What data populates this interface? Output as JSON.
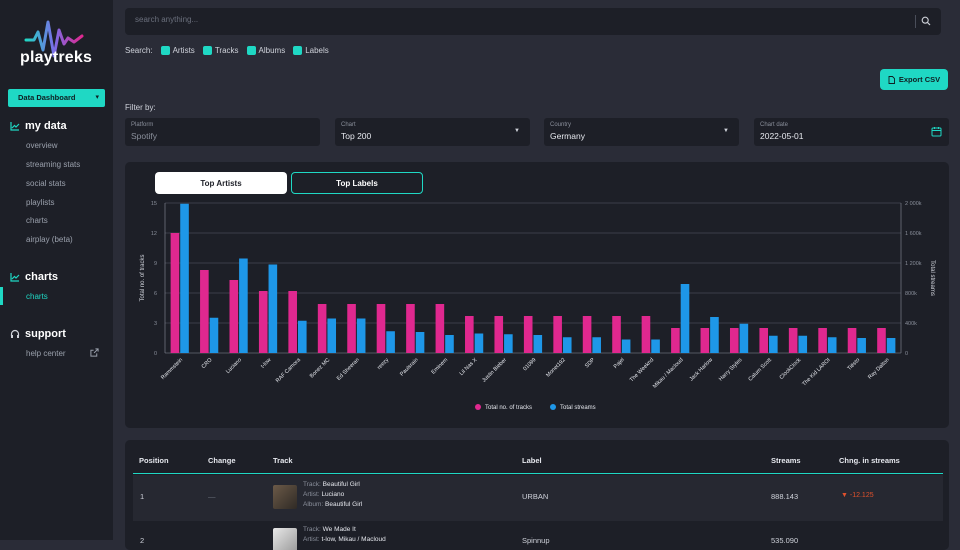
{
  "brand": {
    "name": "playtreks"
  },
  "sidebar": {
    "dashboard_select": "Data Dashboard",
    "sections": [
      {
        "title": "my data",
        "items": [
          "overview",
          "streaming stats",
          "social stats",
          "playlists",
          "charts",
          "airplay (beta)"
        ]
      },
      {
        "title": "charts",
        "items": [
          "charts"
        ]
      },
      {
        "title": "support",
        "items": [
          "help center"
        ]
      }
    ]
  },
  "search": {
    "placeholder": "search anything...",
    "label": "Search:",
    "options": [
      "Artists",
      "Tracks",
      "Albums",
      "Labels"
    ]
  },
  "toolbar": {
    "export_label": "Export CSV"
  },
  "filters": {
    "label": "Filter by:",
    "platform": {
      "label": "Platform",
      "value": "Spotify"
    },
    "chart": {
      "label": "Chart",
      "value": "Top 200"
    },
    "country": {
      "label": "Country",
      "value": "Germany"
    },
    "date": {
      "label": "Chart date",
      "value": "2022-05-01"
    }
  },
  "tabs": {
    "active": "Top Artists",
    "inactive": "Top Labels"
  },
  "chart_data": {
    "type": "bar",
    "categories": [
      "Rammstein",
      "CRO",
      "Luciano",
      "t-low",
      "RAF Camora",
      "Bonez MC",
      "Ed Sheeran",
      "reezy",
      "Paulsrain",
      "Eminem",
      "Lil Nas X",
      "Justin Bieber",
      "01099",
      "Monet192",
      "SDP",
      "Pajel",
      "The Weeknd",
      "Mikau / Macloud",
      "Jack Harlow",
      "Harry Styles",
      "Calum Scott",
      "ClockClock",
      "The Kid LAROI",
      "Tiësto",
      "Ray Dalton"
    ],
    "series": [
      {
        "name": "Total no. of tracks",
        "axis": "left",
        "color": "#e0288f",
        "values": [
          12,
          8.3,
          7.3,
          6.2,
          6.2,
          4.9,
          4.9,
          4.9,
          4.9,
          4.9,
          3.7,
          3.7,
          3.7,
          3.7,
          3.7,
          3.7,
          3.7,
          2.5,
          2.5,
          2.5,
          2.5,
          2.5,
          2.5,
          2.5,
          2.5
        ]
      },
      {
        "name": "Total streams",
        "axis": "right",
        "color": "#1e97e8",
        "values": [
          1990000,
          470000,
          1260000,
          1180000,
          430000,
          460000,
          460000,
          290000,
          280000,
          240000,
          260000,
          250000,
          240000,
          210000,
          210000,
          180000,
          180000,
          920000,
          480000,
          390000,
          230000,
          230000,
          210000,
          200000,
          200000
        ]
      }
    ],
    "ylabel": "Total no. of tracks",
    "ylabel_right": "Total streams",
    "ylim": [
      0,
      15
    ],
    "ylim_right": [
      0,
      2000000
    ],
    "yticks": [
      "0",
      "3",
      "6",
      "9",
      "12",
      "15"
    ],
    "yticks_right": [
      "0",
      "400k",
      "800k",
      "1 200k",
      "1 600k",
      "2 000k"
    ],
    "grid": true,
    "legend": "bottom"
  },
  "table": {
    "columns": [
      "Position",
      "Change",
      "Track",
      "Label",
      "Streams",
      "Chng. in streams"
    ],
    "rows": [
      {
        "position": "1",
        "change": "—",
        "track": "Beautiful Girl",
        "artist": "Luciano",
        "album": "Beautiful Girl",
        "label": "URBAN",
        "streams": "888.143",
        "chng": "-12.125"
      },
      {
        "position": "2",
        "change": "",
        "track": "We Made It",
        "artist": "t-low, Mikau / Macloud",
        "album": "",
        "label": "Spinnup",
        "streams": "535.090",
        "chng": ""
      }
    ],
    "track_prefix": "Track:",
    "artist_prefix": "Artist:",
    "album_prefix": "Album:"
  }
}
